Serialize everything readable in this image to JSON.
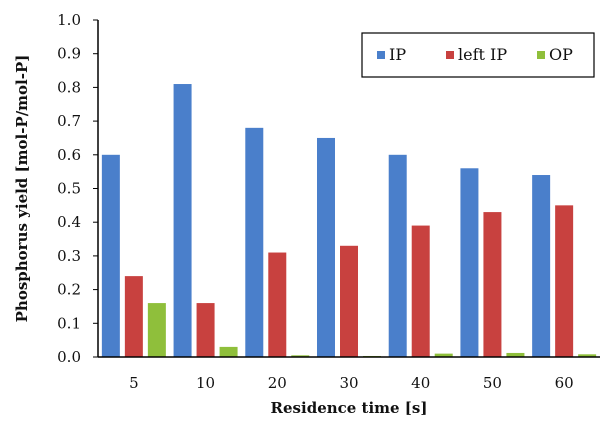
{
  "chart_data": {
    "type": "bar",
    "title": "",
    "xlabel": "Residence time [s]",
    "ylabel": "Phosphorus yield [mol-P/mol-P]",
    "ylim": [
      0,
      1.0
    ],
    "yticks": [
      "0.0",
      "0.1",
      "0.2",
      "0.3",
      "0.4",
      "0.5",
      "0.6",
      "0.7",
      "0.8",
      "0.9",
      "1.0"
    ],
    "categories": [
      "5",
      "10",
      "20",
      "30",
      "40",
      "50",
      "60"
    ],
    "grid": false,
    "legend_position": "top-right",
    "series": [
      {
        "name": "IP",
        "color": "#4a7fcb",
        "values": [
          0.6,
          0.81,
          0.68,
          0.65,
          0.6,
          0.56,
          0.54
        ]
      },
      {
        "name": "left IP",
        "color": "#c8413f",
        "values": [
          0.24,
          0.16,
          0.31,
          0.33,
          0.39,
          0.43,
          0.45
        ]
      },
      {
        "name": "OP",
        "color": "#8fbf3b",
        "values": [
          0.16,
          0.03,
          0.005,
          0.003,
          0.01,
          0.012,
          0.008
        ]
      }
    ]
  }
}
